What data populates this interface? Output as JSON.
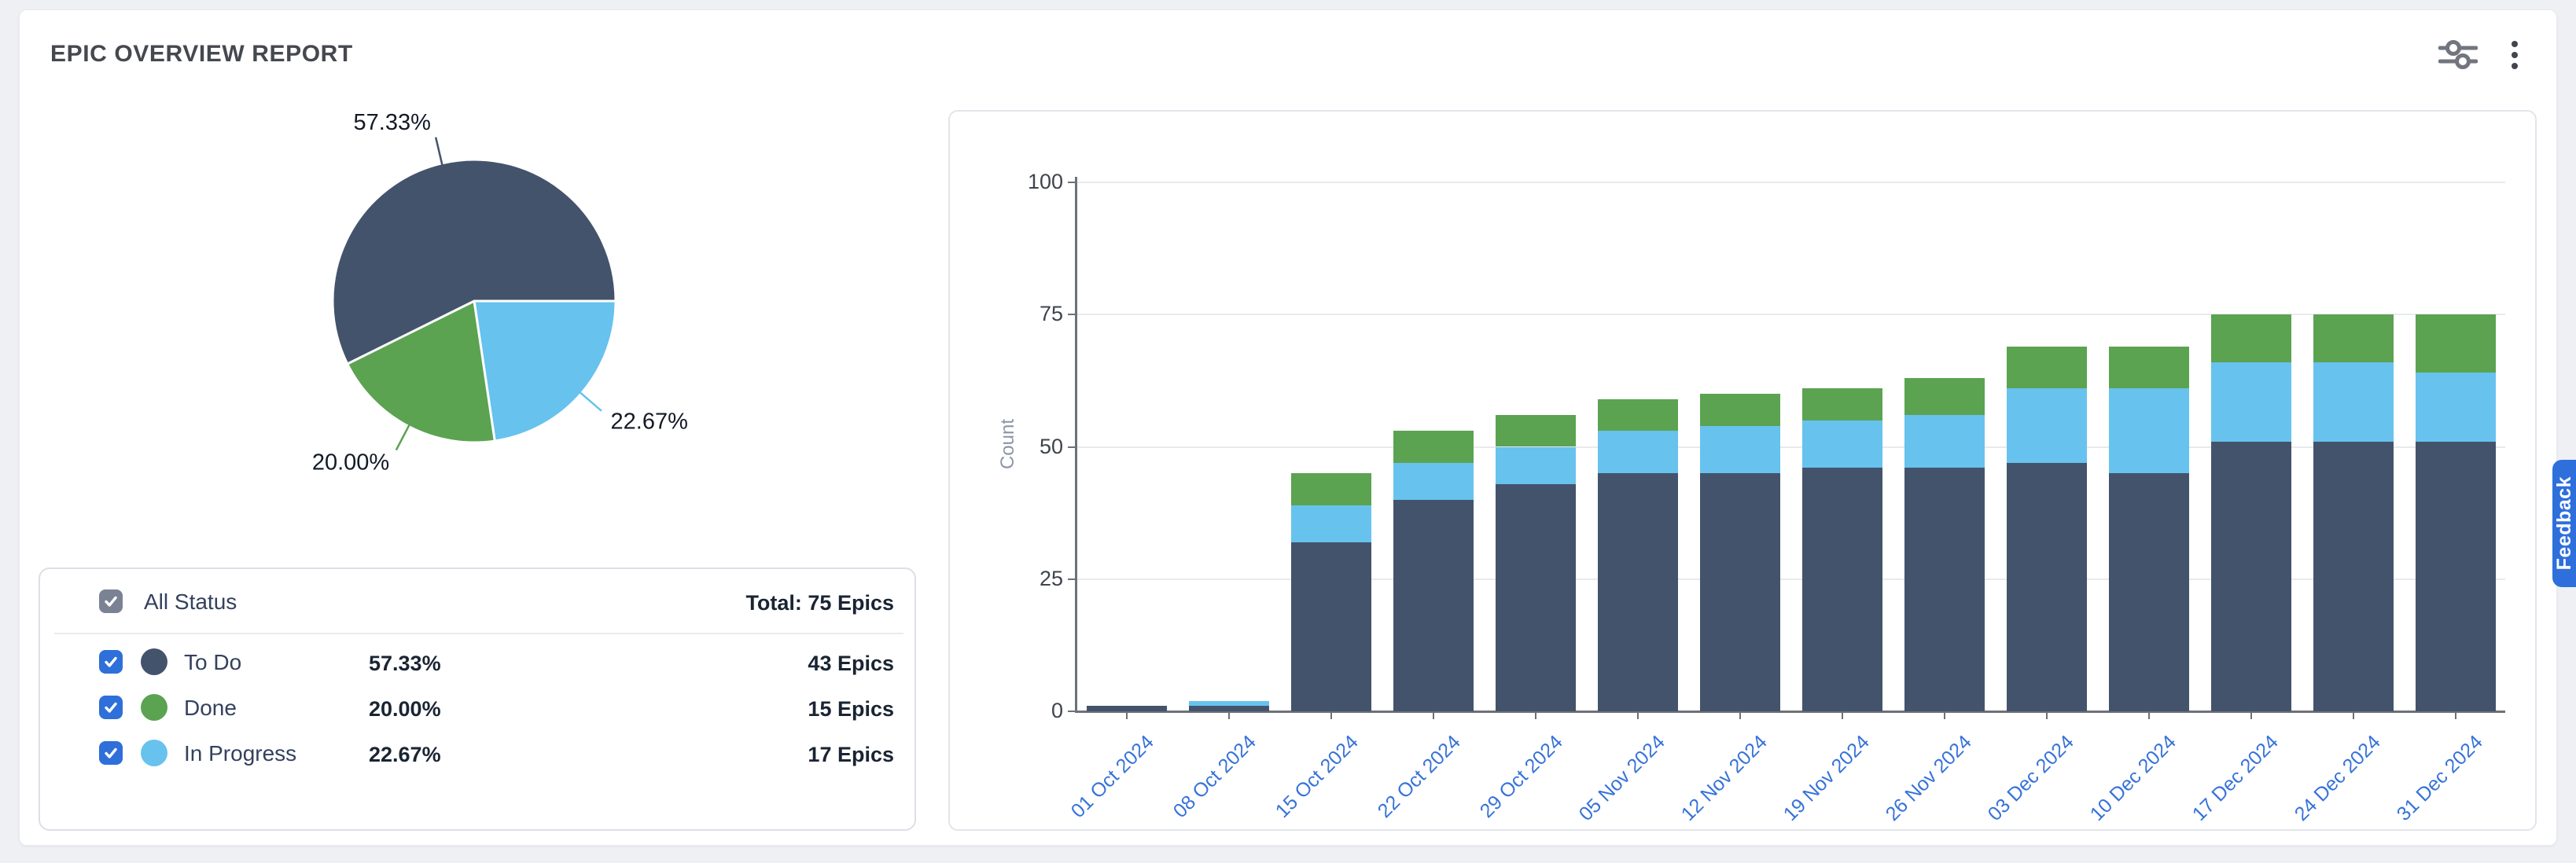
{
  "header": {
    "title": "EPIC OVERVIEW REPORT"
  },
  "toolbar": {
    "icons": [
      {
        "name": "filter-sliders-icon"
      },
      {
        "name": "more-options-icon"
      }
    ]
  },
  "colors": {
    "to_do": "#44536c",
    "done": "#5ba351",
    "in_progress": "#67c2ee",
    "checkbox_blue": "#2e6fd9",
    "checkbox_gray": "#7b8294",
    "date_label": "#3672d9",
    "feedback": "#2e6fdb",
    "pie_label_text": "#121a26"
  },
  "legend_panel": {
    "all_label": "All Status",
    "total_label": "Total: 75 Epics",
    "rows": [
      {
        "label": "To Do",
        "percent_text": "57.33%",
        "count_text": "43 Epics",
        "color_key": "to_do"
      },
      {
        "label": "Done",
        "percent_text": "20.00%",
        "count_text": "15 Epics",
        "color_key": "done"
      },
      {
        "label": "In Progress",
        "percent_text": "22.67%",
        "count_text": "17 Epics",
        "color_key": "in_progress"
      }
    ]
  },
  "feedback": {
    "label": "Feedback"
  },
  "chart_data": [
    {
      "type": "pie",
      "start_angle_clockwise_from_north_deg": 90,
      "clockwise": true,
      "slices": [
        {
          "label": "In Progress",
          "percent": 22.67,
          "count": 17,
          "label_text": "22.67%",
          "color_key": "in_progress"
        },
        {
          "label": "Done",
          "percent": 20.0,
          "count": 15,
          "label_text": "20.00%",
          "color_key": "done"
        },
        {
          "label": "To Do",
          "percent": 57.33,
          "count": 43,
          "label_text": "57.33%",
          "color_key": "to_do"
        }
      ]
    },
    {
      "type": "bar",
      "stacked": true,
      "title": "",
      "xlabel": "",
      "ylabel": "Count",
      "ylim": [
        0,
        100
      ],
      "yticks": [
        0,
        25,
        50,
        75,
        100
      ],
      "x_tick_rotation_deg": 45,
      "grid": true,
      "legend_position": "none",
      "categories": [
        "01 Oct 2024",
        "08 Oct 2024",
        "15 Oct 2024",
        "22 Oct 2024",
        "29 Oct 2024",
        "05 Nov 2024",
        "12 Nov 2024",
        "19 Nov 2024",
        "26 Nov 2024",
        "03 Dec 2024",
        "10 Dec 2024",
        "17 Dec 2024",
        "24 Dec 2024",
        "31 Dec 2024"
      ],
      "series": [
        {
          "name": "To Do",
          "color_key": "to_do",
          "values": [
            1,
            1,
            32,
            40,
            43,
            45,
            45,
            46,
            46,
            47,
            45,
            51,
            51,
            51
          ]
        },
        {
          "name": "In Progress",
          "color_key": "in_progress",
          "values": [
            0,
            1,
            7,
            7,
            7,
            8,
            9,
            9,
            10,
            14,
            16,
            15,
            15,
            13
          ]
        },
        {
          "name": "Done",
          "color_key": "done",
          "values": [
            0,
            0,
            6,
            6,
            6,
            6,
            6,
            6,
            7,
            8,
            8,
            9,
            9,
            11
          ]
        }
      ],
      "totals": [
        1,
        2,
        45,
        53,
        56,
        59,
        60,
        61,
        63,
        69,
        69,
        75,
        75,
        75
      ]
    }
  ]
}
